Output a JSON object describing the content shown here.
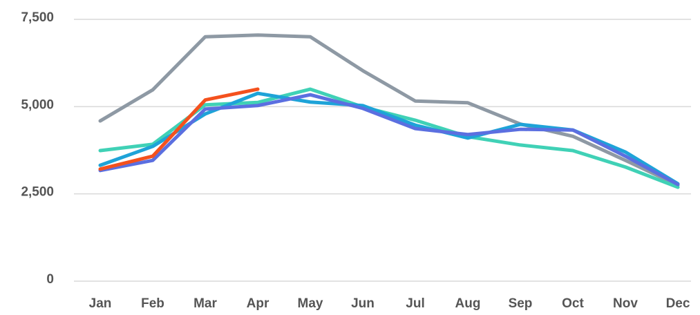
{
  "chart_data": {
    "type": "line",
    "categories": [
      "Jan",
      "Feb",
      "Mar",
      "Apr",
      "May",
      "Jun",
      "Jul",
      "Aug",
      "Sep",
      "Oct",
      "Nov",
      "Dec"
    ],
    "series": [
      {
        "color": "#8e99a4",
        "values": [
          4590,
          5480,
          7000,
          7050,
          7000,
          6030,
          5160,
          5110,
          4500,
          4150,
          3460,
          2750
        ]
      },
      {
        "color": "#40d1b6",
        "values": [
          3740,
          3920,
          5050,
          5120,
          5500,
          4990,
          4610,
          4140,
          3900,
          3740,
          3270,
          2690
        ]
      },
      {
        "color": "#1ea3d8",
        "values": [
          3320,
          3860,
          4790,
          5380,
          5130,
          5030,
          4470,
          4100,
          4490,
          4330,
          3700,
          2790
        ]
      },
      {
        "color": "#5b6fe0",
        "values": [
          3170,
          3460,
          4930,
          5030,
          5340,
          4950,
          4370,
          4200,
          4350,
          4330,
          3580,
          2770
        ]
      },
      {
        "color": "#f4511e",
        "values": [
          3210,
          3580,
          5190,
          5500,
          null,
          null,
          null,
          null,
          null,
          null,
          null,
          null
        ]
      }
    ],
    "ylim": [
      0,
      7500
    ],
    "yticks": [
      0,
      {
        "value": 2500,
        "label": "2,500"
      },
      {
        "value": 5000,
        "label": "5,000"
      },
      {
        "value": 7500,
        "label": "7,500"
      }
    ],
    "grid": true
  }
}
